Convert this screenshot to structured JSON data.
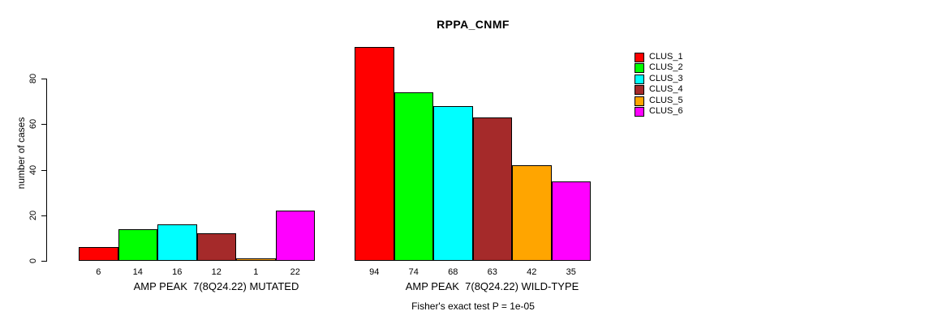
{
  "chart_data": {
    "type": "bar",
    "title": "RPPA_CNMF",
    "ylabel": "number of cases",
    "xlabel": "",
    "caption": "Fisher's exact test P = 1e-05",
    "yticks": [
      0,
      20,
      40,
      60,
      80
    ],
    "ylim": [
      0,
      94
    ],
    "grid": false,
    "legend_position": "top-right",
    "series": [
      {
        "name": "CLUS_1",
        "color": "#ff0000"
      },
      {
        "name": "CLUS_2",
        "color": "#00ff00"
      },
      {
        "name": "CLUS_3",
        "color": "#00ffff"
      },
      {
        "name": "CLUS_4",
        "color": "#a52a2a"
      },
      {
        "name": "CLUS_5",
        "color": "#ffa500"
      },
      {
        "name": "CLUS_6",
        "color": "#ff00ff"
      }
    ],
    "groups": [
      {
        "label": "AMP PEAK  7(8Q24.22) MUTATED",
        "values": [
          6,
          14,
          16,
          12,
          1,
          22
        ]
      },
      {
        "label": "AMP PEAK  7(8Q24.22) WILD-TYPE",
        "values": [
          94,
          74,
          68,
          63,
          42,
          35
        ]
      }
    ]
  }
}
